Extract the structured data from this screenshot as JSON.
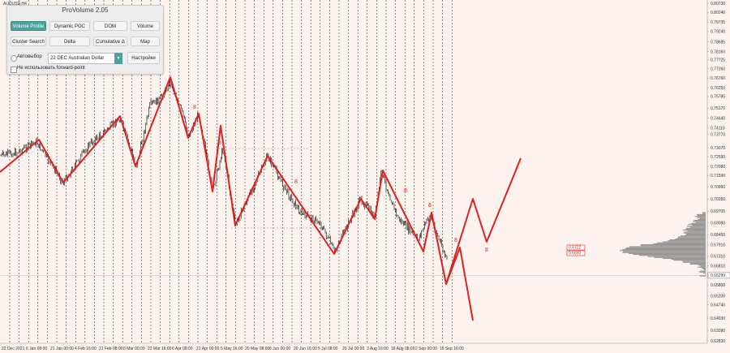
{
  "symbol_label": "AUDUSD,H4",
  "panel": {
    "title": "ProVolume 2.05",
    "buttons": [
      "Volume Profile",
      "Dynamic POC",
      "DOM",
      "Volume",
      "Cluster Search",
      "Delta",
      "Cumulative Δ",
      "Map"
    ],
    "active_button": "Volume Profile",
    "auto_label": "Автовыбор",
    "instrument_value": "22 DEC Australian Dollar",
    "settings_label": "Настройки",
    "forward_label": "Не использовать forward-point"
  },
  "chart_data": {
    "type": "candlestick",
    "symbol": "AUDUSD,H4",
    "price_axis": [
      "0.80730",
      "0.80240",
      "0.79735",
      "0.79240",
      "0.78685",
      "0.78160",
      "0.77725",
      "0.77260",
      "0.76760",
      "0.76250",
      "0.75785",
      "0.75170",
      "0.74640",
      "0.74110",
      "0.73770",
      "0.73070",
      "0.72590",
      "0.72080",
      "0.71590",
      "0.70990",
      "0.70350",
      "0.69705",
      "0.69080",
      "0.68450",
      "0.67910",
      "0.67310",
      "0.66810",
      "0.66299",
      "0.65800",
      "0.65200",
      "0.64740",
      "0.64030",
      "0.63390",
      "0.62830"
    ],
    "current_price": "0.66299",
    "date_axis": [
      "22 Dec 2021",
      "6 Jan 08:00",
      "21 Jan 00:00",
      "4 Feb 16:00",
      "21 Feb 08:00",
      "8 Mar 00:00",
      "22 Mar 16:00",
      "6 Apr 08:00",
      "21 Apr 00:00",
      "5 May 16:00",
      "20 May 08:00",
      "6 Jun 00:00",
      "20 Jun 16:00",
      "5 Jul 08:00",
      "20 Jul 00:00",
      "3 Aug 16:00",
      "18 Aug 08:00",
      "2 Sep 00:00",
      "16 Sep 16:00"
    ],
    "wave_labels": [
      "8",
      "8",
      "8",
      "8",
      "8",
      "8",
      "8"
    ],
    "level_boxes": [
      "0.6722",
      "0.6690"
    ],
    "colors": {
      "background": "#fcf3ee",
      "zigzag": "#e02020",
      "candles": "#000000",
      "profile": "#8a8a8a",
      "accent": "#4aa3a0"
    }
  }
}
